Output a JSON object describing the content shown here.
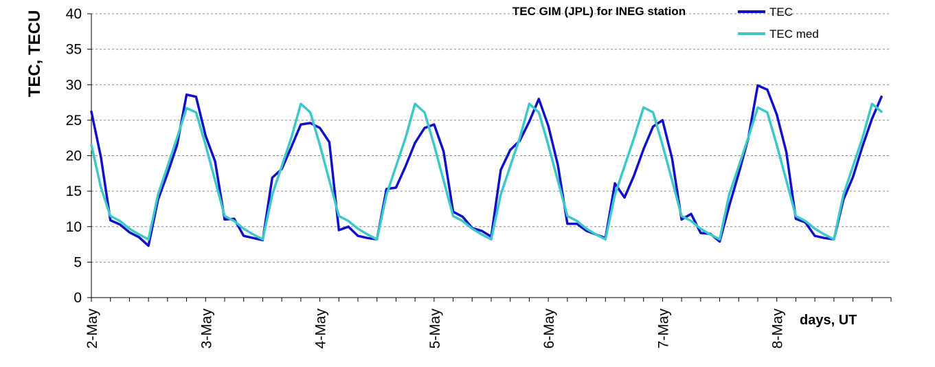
{
  "chart_data": {
    "type": "line",
    "title": "TEC GIM (JPL) for INEG station",
    "ylabel": "TEC, TECU",
    "xlabel": "days, UT",
    "ylim": [
      0,
      40
    ],
    "yticks": [
      0,
      5,
      10,
      15,
      20,
      25,
      30,
      35,
      40
    ],
    "ytick_labels": [
      "0",
      "5",
      "10",
      "15",
      "20",
      "25",
      "30",
      "35",
      "40"
    ],
    "x_unit": "hours since 2-May 00:00 UT",
    "xlim": [
      0,
      168
    ],
    "xticks": [
      0,
      24,
      48,
      72,
      96,
      120,
      144
    ],
    "xtick_labels": [
      "2-May",
      "3-May",
      "4-May",
      "5-May",
      "6-May",
      "7-May",
      "8-May"
    ],
    "grid": "horizontal-dashed",
    "legend_position": "top-right",
    "series": [
      {
        "name": "TEC",
        "color": "#1010c8",
        "x": [
          0,
          2,
          4,
          6,
          8,
          10,
          12,
          14,
          16,
          18,
          20,
          22,
          24,
          26,
          28,
          30,
          32,
          34,
          36,
          38,
          40,
          42,
          44,
          46,
          48,
          50,
          52,
          54,
          56,
          58,
          60,
          62,
          64,
          66,
          68,
          70,
          72,
          74,
          76,
          78,
          80,
          82,
          84,
          86,
          88,
          90,
          92,
          94,
          96,
          98,
          100,
          102,
          104,
          106,
          108,
          110,
          112,
          114,
          116,
          118,
          120,
          122,
          124,
          126,
          128,
          130,
          132,
          134,
          136,
          138,
          140,
          142,
          144,
          146,
          148,
          150,
          152,
          154,
          156,
          158,
          160,
          162,
          164,
          166,
          168
        ],
        "values": [
          26.2,
          19.8,
          10.9,
          10.3,
          9.2,
          8.5,
          7.3,
          13.8,
          17.5,
          21.5,
          28.6,
          28.3,
          22.8,
          19.2,
          11.0,
          11.1,
          8.7,
          8.4,
          8.1,
          16.9,
          18.1,
          21.2,
          24.4,
          24.6,
          23.9,
          21.9,
          9.5,
          10.0,
          8.7,
          8.4,
          8.2,
          15.3,
          15.5,
          18.5,
          21.8,
          23.9,
          24.4,
          20.6,
          12.1,
          11.4,
          9.8,
          9.4,
          8.6,
          18.0,
          20.8,
          22.1,
          24.8,
          28.0,
          24.2,
          18.7,
          10.4,
          10.4,
          9.4,
          8.9,
          8.4,
          16.1,
          14.1,
          17.2,
          20.9,
          24.1,
          25.0,
          19.6,
          11.0,
          11.8,
          9.1,
          9.0,
          7.9,
          12.9,
          17.5,
          22.4,
          29.9,
          29.3,
          25.8,
          20.5,
          11.1,
          10.6,
          8.7,
          8.4,
          8.2,
          13.8,
          17.0,
          21.3,
          25.2,
          28.3,
          null
        ]
      },
      {
        "name": "TEC med",
        "color": "#3cc8c8",
        "x": [
          0,
          2,
          4,
          6,
          8,
          10,
          12,
          14,
          16,
          18,
          20,
          22,
          24,
          26,
          28,
          30,
          32,
          34,
          36,
          38,
          40,
          42,
          44,
          46,
          48,
          50,
          52,
          54,
          56,
          58,
          60,
          62,
          64,
          66,
          68,
          70,
          72,
          74,
          76,
          78,
          80,
          82,
          84,
          86,
          88,
          90,
          92,
          94,
          96,
          98,
          100,
          102,
          104,
          106,
          108,
          110,
          112,
          114,
          116,
          118,
          120,
          122,
          124,
          126,
          128,
          130,
          132,
          134,
          136,
          138,
          140,
          142,
          144,
          146,
          148,
          150,
          152,
          154,
          156,
          158,
          160,
          162,
          164,
          166,
          168
        ],
        "values": [
          21.5,
          15.5,
          11.5,
          10.8,
          9.7,
          8.9,
          8.2,
          14.5,
          18.5,
          22.5,
          26.7,
          26.1,
          21.5,
          16.5,
          11.5,
          10.8,
          9.7,
          8.9,
          8.2,
          14.5,
          18.5,
          22.5,
          27.3,
          26.1,
          21.5,
          16.5,
          11.5,
          10.8,
          9.7,
          8.9,
          8.2,
          14.5,
          18.5,
          22.5,
          27.3,
          26.1,
          21.5,
          16.5,
          11.5,
          10.8,
          9.7,
          8.9,
          8.2,
          14.5,
          18.5,
          22.5,
          27.3,
          26.1,
          21.5,
          16.5,
          11.5,
          10.8,
          9.7,
          8.9,
          8.2,
          14.5,
          18.5,
          22.5,
          26.8,
          26.1,
          21.5,
          16.5,
          11.5,
          10.8,
          9.7,
          8.9,
          8.2,
          14.5,
          18.5,
          22.5,
          26.8,
          26.1,
          21.5,
          16.5,
          11.5,
          10.8,
          9.7,
          8.9,
          8.2,
          14.5,
          18.5,
          22.5,
          27.3,
          26.2,
          null
        ]
      }
    ]
  }
}
